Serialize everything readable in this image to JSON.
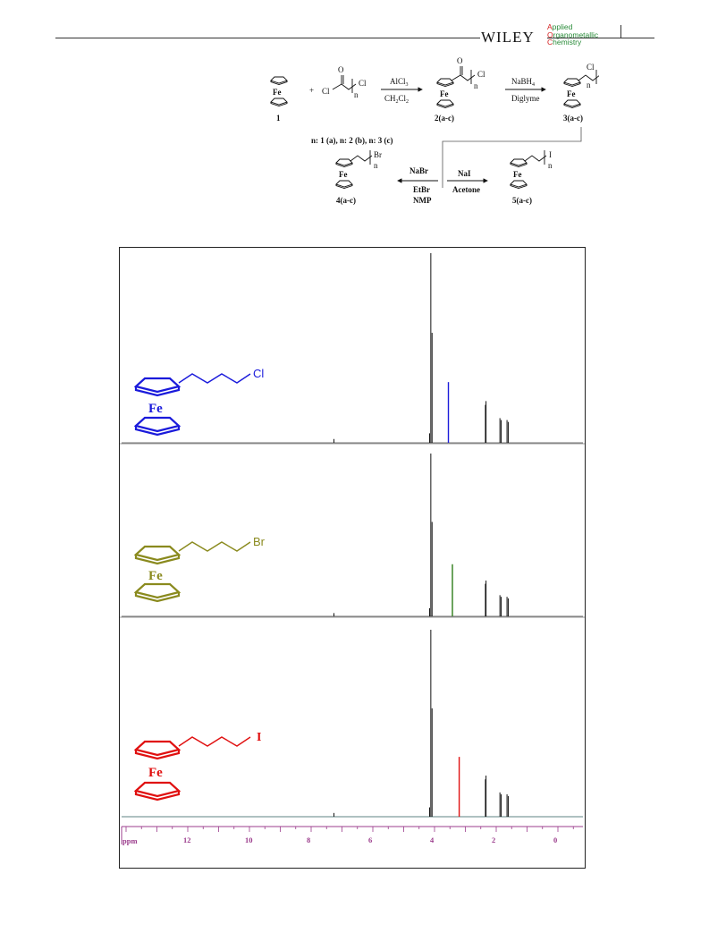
{
  "header": {
    "publisher": "WILEY",
    "journal_lines": [
      "Applied",
      "Organometallic",
      "Chemistry"
    ],
    "journal_caps_color": "#d42020",
    "journal_color": "#2a8c3a"
  },
  "scheme": {
    "compounds": {
      "c1": "1",
      "c2": "2(a-c)",
      "c3": "3(a-c)",
      "c4": "4(a-c)",
      "c5": "5(a-c)"
    },
    "metal": "Fe",
    "labels": {
      "cl": "Cl",
      "o": "O",
      "n": "n",
      "br": "Br",
      "i": "I",
      "plus": "+"
    },
    "reagents": {
      "step1_top": "AlCl",
      "step1_top_sub": "3",
      "step1_bottom": "CH",
      "step1_bottom_sub": "2",
      "step1_bottom_tail": "Cl",
      "step1_bottom_tail_sub": "2",
      "step2_top": "NaBH",
      "step2_top_sub": "4",
      "step2_bottom": "Diglyme",
      "step3_top": "NaBr",
      "step3_mid": "EtBr",
      "step3_bottom": "NMP",
      "step4_top": "NaI",
      "step4_bottom": "Acetone"
    },
    "n_values": "n: 1 (a), n: 2 (b), n: 3 (c)"
  },
  "nmr": {
    "axis_unit": "ppm",
    "axis_ticks": [
      "12",
      "10",
      "8",
      "6",
      "4",
      "2",
      "0"
    ],
    "spectra": [
      {
        "name": "chloro",
        "halogen": "Cl",
        "metal": "Fe",
        "color": "#1a1adb",
        "highlight_ppm": 3.55
      },
      {
        "name": "bromo",
        "halogen": "Br",
        "metal": "Fe",
        "color": "#8a8a1e",
        "highlight_ppm": 3.42
      },
      {
        "name": "iodo",
        "halogen": "I",
        "metal": "Fe",
        "color": "#e01010",
        "highlight_ppm": 3.2
      }
    ],
    "highlight_line_color_bromo": "#2f7d1a",
    "axis_color": "#9b3c8c"
  }
}
